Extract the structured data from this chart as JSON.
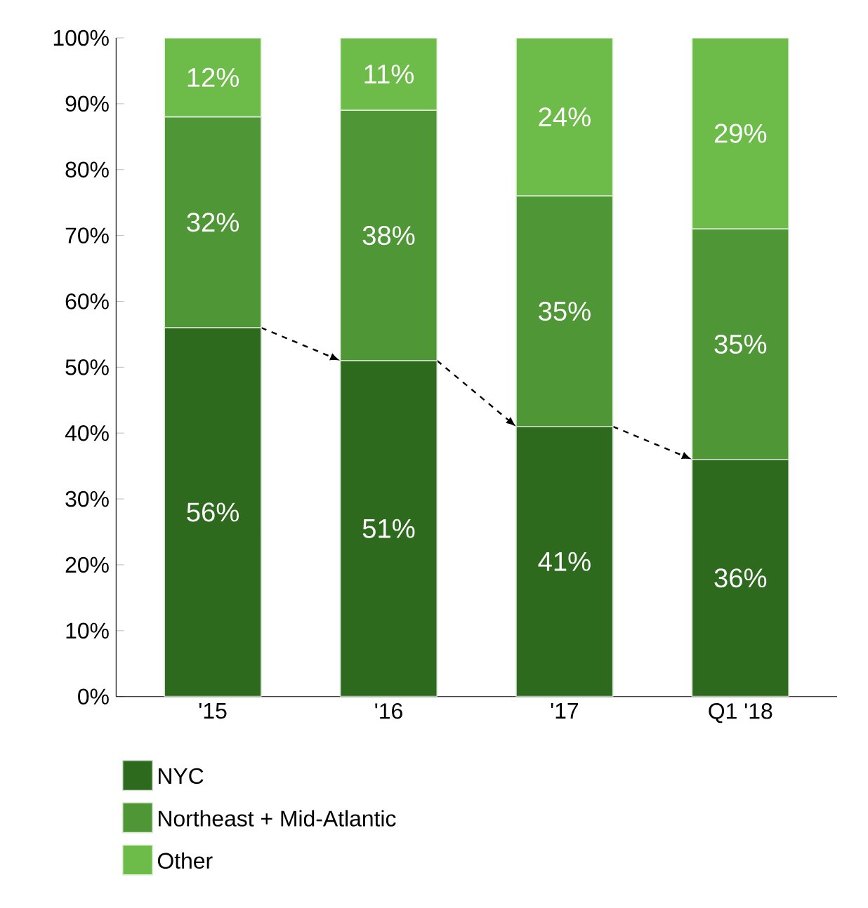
{
  "chart_data": {
    "type": "bar",
    "stacked": true,
    "categories": [
      "'15",
      "'16",
      "'17",
      "Q1 '18"
    ],
    "series": [
      {
        "name": "NYC",
        "color": "#2e6a1e",
        "values": [
          56,
          51,
          41,
          36
        ],
        "value_labels": [
          "56%",
          "51%",
          "41%",
          "36%"
        ]
      },
      {
        "name": "Northeast + Mid-Atlantic",
        "color": "#4f9636",
        "values": [
          32,
          38,
          35,
          35
        ],
        "value_labels": [
          "32%",
          "38%",
          "35%",
          "35%"
        ]
      },
      {
        "name": "Other",
        "color": "#6dbb48",
        "values": [
          12,
          11,
          24,
          29
        ],
        "value_labels": [
          "12%",
          "11%",
          "24%",
          "29%"
        ]
      }
    ],
    "ylim": [
      0,
      100
    ],
    "yticks": [
      {
        "value": 0,
        "label": "0%"
      },
      {
        "value": 10,
        "label": "10%"
      },
      {
        "value": 20,
        "label": "20%"
      },
      {
        "value": 30,
        "label": "30%"
      },
      {
        "value": 40,
        "label": "40%"
      },
      {
        "value": 50,
        "label": "50%"
      },
      {
        "value": 60,
        "label": "60%"
      },
      {
        "value": 70,
        "label": "70%"
      },
      {
        "value": 80,
        "label": "80%"
      },
      {
        "value": 90,
        "label": "90%"
      },
      {
        "value": 100,
        "label": "100%"
      }
    ],
    "grid": false,
    "legend": "bottom"
  }
}
